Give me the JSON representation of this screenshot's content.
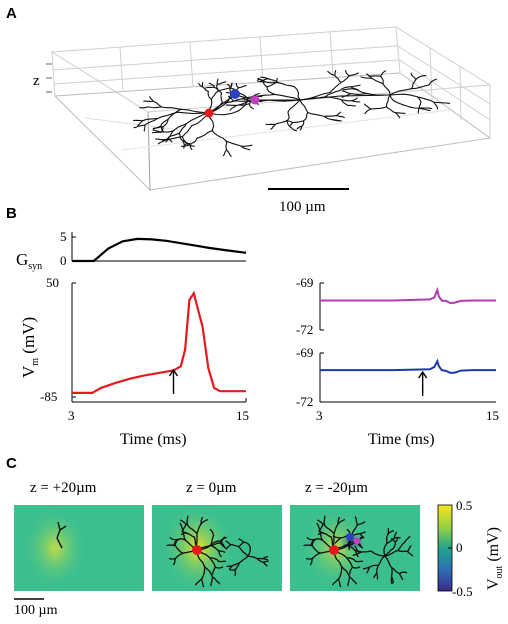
{
  "panels": {
    "a": {
      "label": "A",
      "z_axis_label": "z",
      "scale_bar": "100 µm",
      "markers": [
        {
          "name": "red",
          "color": "#e41a1c"
        },
        {
          "name": "blue",
          "color": "#2b3fbf"
        },
        {
          "name": "magenta",
          "color": "#c040c0"
        }
      ]
    },
    "b": {
      "label": "B",
      "gsyn_label_main": "G",
      "gsyn_label_sub": "syn",
      "vm_label_main": "V",
      "vm_label_sub": "m",
      "vm_label_unit": " (mV)",
      "xlabel_left": "Time (ms)",
      "xlabel_right": "Time (ms)"
    },
    "c": {
      "label": "C",
      "titles": [
        "z = +20µm",
        "z = 0µm",
        "z = -20µm"
      ],
      "colorbar_label_main": "V",
      "colorbar_label_sub": "out",
      "colorbar_label_unit": " (mV)",
      "colorbar_ticks": [
        "0.5",
        "0",
        "-0.5"
      ],
      "scale_bar": "100 µm",
      "colors": {
        "background": "#3cbf8f",
        "high": "#f5e51f",
        "low": "#3b2a8a"
      }
    }
  },
  "chart_data": [
    {
      "type": "line",
      "panel": "B-top",
      "ylabel": "Gsyn",
      "ylim": [
        0,
        5
      ],
      "xlim": [
        3,
        15
      ],
      "yticks": [
        "0",
        "5"
      ],
      "series": [
        {
          "x": [
            3,
            4.5,
            5.5,
            6.5,
            7.5,
            8.5,
            9.5,
            10.5,
            11.5,
            12.5,
            13.5,
            15
          ],
          "values": [
            0,
            0,
            2.6,
            4.1,
            4.6,
            4.5,
            4.2,
            3.7,
            3.2,
            2.7,
            2.3,
            1.7
          ]
        }
      ]
    },
    {
      "type": "line",
      "panel": "B-left",
      "ylabel": "Vm (mV)",
      "xlabel": "Time (ms)",
      "ylim": [
        -85,
        50
      ],
      "xlim": [
        3,
        15
      ],
      "yticks": [
        "50",
        "-85"
      ],
      "xticks": [
        "3",
        "15"
      ],
      "arrow_x": 10,
      "series": [
        {
          "x": [
            3,
            4.4,
            5,
            6,
            7,
            8,
            9,
            10,
            10.5,
            10.8,
            11.1,
            11.4,
            11.7,
            12,
            12.4,
            12.8,
            13.2,
            14,
            15
          ],
          "values": [
            -80,
            -80,
            -74,
            -68,
            -63,
            -59,
            -56,
            -53,
            -48,
            -28,
            32,
            40,
            20,
            0,
            -50,
            -74,
            -78,
            -78,
            -78
          ],
          "color": "#e41a1c"
        }
      ]
    },
    {
      "type": "line",
      "panel": "B-right-top",
      "xlabel": "",
      "ylim": [
        -72,
        -69
      ],
      "xlim": [
        3,
        15
      ],
      "yticks": [
        "-69",
        "-72"
      ],
      "series": [
        {
          "x": [
            3,
            8,
            10.5,
            10.8,
            11,
            11.1,
            11.3,
            11.6,
            11.9,
            12.2,
            12.6,
            13.4,
            15
          ],
          "values": [
            -70.12,
            -70.12,
            -70.05,
            -69.92,
            -69.45,
            -69.85,
            -70.12,
            -70.15,
            -70.28,
            -70.25,
            -70.14,
            -70.12,
            -70.12
          ],
          "color": "#b33bb3"
        }
      ]
    },
    {
      "type": "line",
      "panel": "B-right-bottom",
      "xlabel": "Time (ms)",
      "ylim": [
        -72,
        -69
      ],
      "xlim": [
        3,
        15
      ],
      "yticks": [
        "-69",
        "-72"
      ],
      "xticks": [
        "3",
        "15"
      ],
      "arrow_x": 10,
      "series": [
        {
          "x": [
            3,
            8,
            10.5,
            10.8,
            11,
            11.1,
            11.3,
            11.6,
            11.9,
            12.2,
            12.6,
            13.4,
            15
          ],
          "values": [
            -70.05,
            -70.05,
            -70.0,
            -69.85,
            -69.5,
            -69.8,
            -70.05,
            -70.1,
            -70.22,
            -70.2,
            -70.08,
            -70.05,
            -70.05
          ],
          "color": "#1c3aa8"
        }
      ]
    }
  ]
}
